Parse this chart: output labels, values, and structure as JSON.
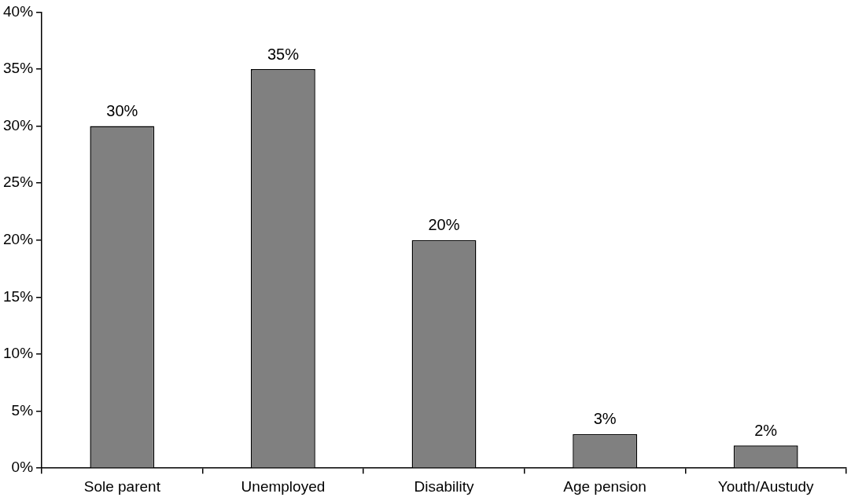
{
  "chart_data": {
    "type": "bar",
    "categories": [
      "Sole parent",
      "Unemployed",
      "Disability",
      "Age pension",
      "Youth/Austudy"
    ],
    "values": [
      30,
      35,
      20,
      3,
      2
    ],
    "value_labels": [
      "30%",
      "35%",
      "20%",
      "3%",
      "2%"
    ],
    "color": "#808080",
    "ylim": [
      0,
      40
    ],
    "yticks": [
      {
        "value": 0,
        "label": "0%"
      },
      {
        "value": 5,
        "label": "5%"
      },
      {
        "value": 10,
        "label": "10%"
      },
      {
        "value": 15,
        "label": "15%"
      },
      {
        "value": 20,
        "label": "20%"
      },
      {
        "value": 25,
        "label": "25%"
      },
      {
        "value": 30,
        "label": "30%"
      },
      {
        "value": 35,
        "label": "35%"
      },
      {
        "value": 40,
        "label": "40%"
      }
    ],
    "grid": false,
    "legend": false
  }
}
